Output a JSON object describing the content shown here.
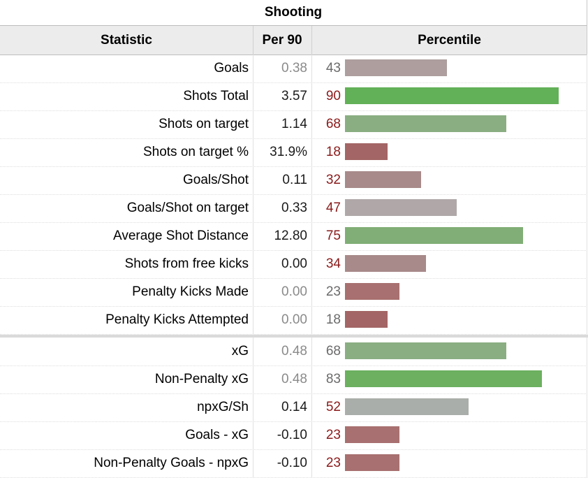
{
  "caption": "Shooting",
  "headers": {
    "statistic": "Statistic",
    "per90": "Per 90",
    "percentile": "Percentile"
  },
  "colors": {
    "high": "#62b057",
    "mid_high": "#8aae82",
    "neutral": "#aaaaaa",
    "mid_low": "#a88a8a",
    "low": "#a36565",
    "red_text": "#8b1a1a",
    "grey_text": "#6a6a6a"
  },
  "chart_data": {
    "type": "table",
    "title": "Shooting",
    "columns": [
      "Statistic",
      "Per 90",
      "Percentile"
    ],
    "percentile_range": [
      0,
      100
    ],
    "groups": [
      {
        "rows": [
          {
            "statistic": "Goals",
            "per90": "0.38",
            "percentile": 43,
            "bar_color": "#ae9e9e",
            "pct_color": "#6a6a6a",
            "per90_faded": true
          },
          {
            "statistic": "Shots Total",
            "per90": "3.57",
            "percentile": 90,
            "bar_color": "#62b057",
            "pct_color": "#8b1a1a",
            "per90_faded": false
          },
          {
            "statistic": "Shots on target",
            "per90": "1.14",
            "percentile": 68,
            "bar_color": "#8aae82",
            "pct_color": "#8b1a1a",
            "per90_faded": false
          },
          {
            "statistic": "Shots on target %",
            "per90": "31.9%",
            "percentile": 18,
            "bar_color": "#a36565",
            "pct_color": "#8b1a1a",
            "per90_faded": false
          },
          {
            "statistic": "Goals/Shot",
            "per90": "0.11",
            "percentile": 32,
            "bar_color": "#a88a8a",
            "pct_color": "#8b1a1a",
            "per90_faded": false
          },
          {
            "statistic": "Goals/Shot on target",
            "per90": "0.33",
            "percentile": 47,
            "bar_color": "#b0a8a8",
            "pct_color": "#8b1a1a",
            "per90_faded": false
          },
          {
            "statistic": "Average Shot Distance",
            "per90": "12.80",
            "percentile": 75,
            "bar_color": "#80ae76",
            "pct_color": "#8b1a1a",
            "per90_faded": false
          },
          {
            "statistic": "Shots from free kicks",
            "per90": "0.00",
            "percentile": 34,
            "bar_color": "#a88a8a",
            "pct_color": "#8b1a1a",
            "per90_faded": false
          },
          {
            "statistic": "Penalty Kicks Made",
            "per90": "0.00",
            "percentile": 23,
            "bar_color": "#a87070",
            "pct_color": "#6a6a6a",
            "per90_faded": true
          },
          {
            "statistic": "Penalty Kicks Attempted",
            "per90": "0.00",
            "percentile": 18,
            "bar_color": "#a36565",
            "pct_color": "#6a6a6a",
            "per90_faded": true
          }
        ]
      },
      {
        "rows": [
          {
            "statistic": "xG",
            "per90": "0.48",
            "percentile": 68,
            "bar_color": "#8aae82",
            "pct_color": "#6a6a6a",
            "per90_faded": true
          },
          {
            "statistic": "Non-Penalty xG",
            "per90": "0.48",
            "percentile": 83,
            "bar_color": "#6cb060",
            "pct_color": "#6a6a6a",
            "per90_faded": true
          },
          {
            "statistic": "npxG/Sh",
            "per90": "0.14",
            "percentile": 52,
            "bar_color": "#aaaeaa",
            "pct_color": "#8b1a1a",
            "per90_faded": false
          },
          {
            "statistic": "Goals - xG",
            "per90": "-0.10",
            "percentile": 23,
            "bar_color": "#a87070",
            "pct_color": "#8b1a1a",
            "per90_faded": false
          },
          {
            "statistic": "Non-Penalty Goals - npxG",
            "per90": "-0.10",
            "percentile": 23,
            "bar_color": "#a87070",
            "pct_color": "#8b1a1a",
            "per90_faded": false
          }
        ]
      }
    ]
  }
}
